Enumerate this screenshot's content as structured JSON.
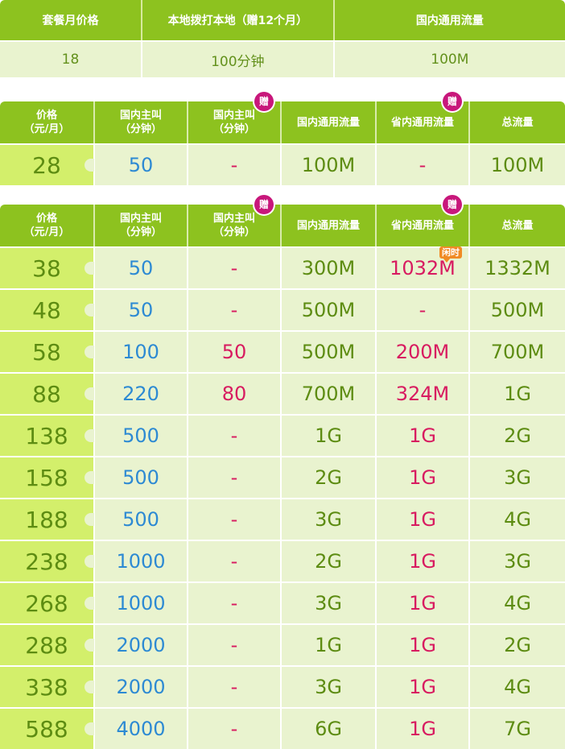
{
  "table1": {
    "headers": [
      "套餐月价格",
      "本地拨打本地（赠12个月）",
      "国内通用流量"
    ],
    "row": [
      "18",
      "100分钟",
      "100M"
    ]
  },
  "table2": {
    "headers": [
      {
        "line1": "价格",
        "line2": "（元/月）"
      },
      {
        "line1": "国内主叫",
        "line2": "（分钟）"
      },
      {
        "line1": "国内主叫",
        "line2": "（分钟）"
      },
      {
        "line1": "国内通用流量",
        "line2": ""
      },
      {
        "line1": "省内通用流量",
        "line2": ""
      },
      {
        "line1": "总流量",
        "line2": ""
      }
    ],
    "gift_label": "赠",
    "rows": [
      {
        "price": "28",
        "calls": "50",
        "bonus_calls": "-",
        "national_data": "100M",
        "provincial_data": "-",
        "total_data": "100M"
      }
    ]
  },
  "table3": {
    "headers": [
      {
        "line1": "价格",
        "line2": "（元/月）"
      },
      {
        "line1": "国内主叫",
        "line2": "（分钟）"
      },
      {
        "line1": "国内主叫",
        "line2": "（分钟）"
      },
      {
        "line1": "国内通用流量",
        "line2": ""
      },
      {
        "line1": "省内通用流量",
        "line2": ""
      },
      {
        "line1": "总流量",
        "line2": ""
      }
    ],
    "gift_label": "赠",
    "idle_label": "闲时",
    "rows": [
      {
        "price": "38",
        "calls": "50",
        "bonus_calls": "-",
        "national_data": "300M",
        "provincial_data": "1032M",
        "total_data": "1332M"
      },
      {
        "price": "48",
        "calls": "50",
        "bonus_calls": "-",
        "national_data": "500M",
        "provincial_data": "-",
        "total_data": "500M"
      },
      {
        "price": "58",
        "calls": "100",
        "bonus_calls": "50",
        "national_data": "500M",
        "provincial_data": "200M",
        "total_data": "700M"
      },
      {
        "price": "88",
        "calls": "220",
        "bonus_calls": "80",
        "national_data": "700M",
        "provincial_data": "324M",
        "total_data": "1G"
      },
      {
        "price": "138",
        "calls": "500",
        "bonus_calls": "-",
        "national_data": "1G",
        "provincial_data": "1G",
        "total_data": "2G"
      },
      {
        "price": "158",
        "calls": "500",
        "bonus_calls": "-",
        "national_data": "2G",
        "provincial_data": "1G",
        "total_data": "3G"
      },
      {
        "price": "188",
        "calls": "500",
        "bonus_calls": "-",
        "national_data": "3G",
        "provincial_data": "1G",
        "total_data": "4G"
      },
      {
        "price": "238",
        "calls": "1000",
        "bonus_calls": "-",
        "national_data": "2G",
        "provincial_data": "1G",
        "total_data": "3G"
      },
      {
        "price": "268",
        "calls": "1000",
        "bonus_calls": "-",
        "national_data": "3G",
        "provincial_data": "1G",
        "total_data": "4G"
      },
      {
        "price": "288",
        "calls": "2000",
        "bonus_calls": "-",
        "national_data": "1G",
        "provincial_data": "1G",
        "total_data": "2G"
      },
      {
        "price": "338",
        "calls": "2000",
        "bonus_calls": "-",
        "national_data": "3G",
        "provincial_data": "1G",
        "total_data": "4G"
      },
      {
        "price": "588",
        "calls": "4000",
        "bonus_calls": "-",
        "national_data": "6G",
        "provincial_data": "1G",
        "total_data": "7G"
      }
    ]
  },
  "colors": {
    "header_green": "#8dc21f",
    "price_cell": "#d3ef6b",
    "cell_bg": "#e9f3cf",
    "text_green": "#5d8c12",
    "text_blue": "#2d8ad3",
    "text_pink": "#d81b60",
    "badge_magenta": "#c8177b",
    "badge_orange": "#f08a24"
  }
}
